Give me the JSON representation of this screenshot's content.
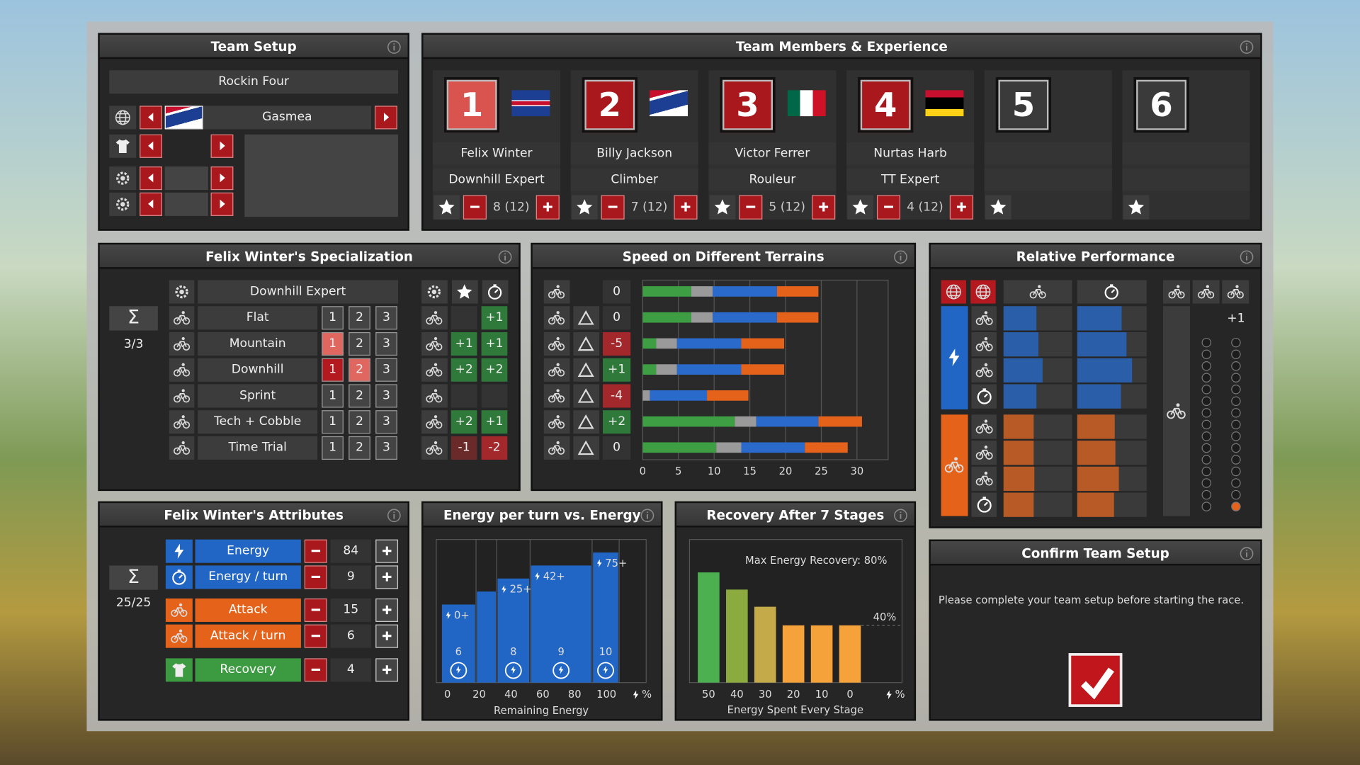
{
  "team_setup": {
    "title": "Team Setup",
    "team_name": "Rockin Four",
    "country": "Gasmea"
  },
  "team_members": {
    "title": "Team Members & Experience",
    "members": [
      {
        "number": 1,
        "name": "Felix Winter",
        "role": "Downhill Expert",
        "score": "8 (12)"
      },
      {
        "number": 2,
        "name": "Billy Jackson",
        "role": "Climber",
        "score": "7 (12)"
      },
      {
        "number": 3,
        "name": "Victor Ferrer",
        "role": "Rouleur",
        "score": "5 (12)"
      },
      {
        "number": 4,
        "name": "Nurtas Harb",
        "role": "TT Expert",
        "score": "4 (12)"
      },
      {
        "number": 5
      },
      {
        "number": 6
      }
    ]
  },
  "specialization": {
    "title": "Felix Winter's Specialization",
    "sum_symbol": "Σ",
    "sum": "3/3",
    "name": "Downhill Expert",
    "rows": [
      {
        "name": "Flat",
        "levels": [
          1,
          2,
          3
        ],
        "bonus": [
          null,
          "+1"
        ]
      },
      {
        "name": "Mountain",
        "levels": [
          1,
          2,
          3
        ],
        "pending": 1,
        "bonus": [
          "+1",
          "+1"
        ]
      },
      {
        "name": "Downhill",
        "levels": [
          1,
          2,
          3
        ],
        "active": 1,
        "pending": 2,
        "bonus": [
          "+2",
          "+2"
        ]
      },
      {
        "name": "Sprint",
        "levels": [
          1,
          2,
          3
        ],
        "bonus": [
          null,
          null
        ]
      },
      {
        "name": "Tech + Cobble",
        "levels": [
          1,
          2,
          3
        ],
        "bonus": [
          "+2",
          "+1"
        ]
      },
      {
        "name": "Time Trial",
        "levels": [
          1,
          2,
          3
        ],
        "bonus": [
          "-1",
          "-2"
        ]
      }
    ]
  },
  "attributes": {
    "title": "Felix Winter's Attributes",
    "sum_symbol": "Σ",
    "sum": "25/25",
    "rows": [
      {
        "name": "Energy",
        "value": 84,
        "color": "#2166c4"
      },
      {
        "name": "Energy / turn",
        "value": 9,
        "color": "#2166c4"
      },
      {
        "name": "Attack",
        "value": 15,
        "color": "#e5621a"
      },
      {
        "name": "Attack / turn",
        "value": 6,
        "color": "#e5621a"
      },
      {
        "name": "Recovery",
        "value": 4,
        "color": "#3c9a40"
      }
    ]
  },
  "confirm": {
    "title": "Confirm Team Setup",
    "message": "Please complete your team setup before starting the race."
  },
  "chart_data": [
    {
      "type": "bar",
      "orientation": "horizontal",
      "title": "Speed on Different Terrains",
      "modifiers": [
        0,
        0,
        -5,
        1,
        -4,
        2,
        0
      ],
      "modifier_labels": [
        "0",
        "0",
        "-5",
        "+1",
        "-4",
        "+2",
        "0"
      ],
      "series": [
        {
          "color": "#3d9e44",
          "values": [
            6.8,
            6.8,
            1.9,
            1.9,
            0,
            12.9,
            10.3
          ]
        },
        {
          "color": "#9a9a9a",
          "values": [
            3.0,
            3.0,
            2.9,
            2.9,
            1.0,
            3.0,
            3.5
          ]
        },
        {
          "color": "#2a6acb",
          "values": [
            9.0,
            9.0,
            9.0,
            9.0,
            8.0,
            8.7,
            8.9
          ]
        },
        {
          "color": "#e5621a",
          "values": [
            5.8,
            5.8,
            6.0,
            6.0,
            5.8,
            6.1,
            6.0
          ]
        }
      ],
      "xlim": [
        0,
        34
      ],
      "xticks": [
        0,
        5,
        10,
        15,
        20,
        25,
        30
      ],
      "grid": true
    },
    {
      "type": "bar",
      "orientation": "horizontal",
      "title": "Relative Performance",
      "xlim": [
        0,
        100
      ],
      "groups": [
        {
          "color": "#2a5ea8",
          "series": [
            {
              "values": [
                48,
                51,
                57,
                48
              ]
            },
            {
              "values": [
                64,
                71,
                79,
                63
              ]
            }
          ]
        },
        {
          "color": "#b85a26",
          "series": [
            {
              "values": [
                44,
                44,
                45,
                44
              ]
            },
            {
              "values": [
                54,
                55,
                60,
                53
              ]
            }
          ]
        }
      ],
      "level_label": "+1",
      "dot_count": 15,
      "dots_filled": [
        0,
        1
      ],
      "dot_color": "#e5621a"
    },
    {
      "type": "histogram",
      "title": "Energy per turn vs. Energy",
      "bins": [
        -4,
        18,
        31,
        52,
        91,
        108
      ],
      "values": [
        6,
        7,
        8,
        9,
        10
      ],
      "value_labels": [
        "6",
        null,
        "8",
        "9",
        "10"
      ],
      "threshold_labels": [
        "0+",
        null,
        "25+",
        "42+",
        "75+"
      ],
      "xlim": [
        -7,
        125
      ],
      "xticks": [
        0,
        20,
        40,
        60,
        80,
        100
      ],
      "ylim": [
        0,
        11
      ],
      "x_unit": "%",
      "xlabel": "Remaining Energy",
      "color": "#2166c4"
    },
    {
      "type": "bar",
      "title": "Recovery After 7 Stages",
      "categories": [
        "50",
        "40",
        "30",
        "20",
        "10",
        "0"
      ],
      "values": [
        77,
        65,
        53,
        40,
        40,
        40
      ],
      "colors": [
        "#4caf50",
        "#8bab3e",
        "#c4aa48",
        "#f5a23a",
        "#f5a23a",
        "#f5a23a"
      ],
      "ylim": [
        0,
        100
      ],
      "annotation": "Max Energy Recovery: 80%",
      "reference_label": "40%",
      "reference_value": 40,
      "x_unit": "%",
      "xlabel": "Energy Spent Every Stage"
    }
  ]
}
